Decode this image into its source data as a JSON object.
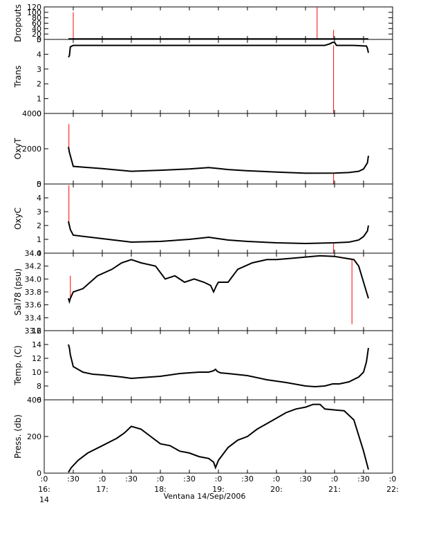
{
  "figure": {
    "x_ticks": [
      {
        "t": 0,
        "label": ":0",
        "sub": "16:"
      },
      {
        "t": 30,
        "label": ":30",
        "sub": ""
      },
      {
        "t": 60,
        "label": ":0",
        "sub": "17:"
      },
      {
        "t": 90,
        "label": ":30",
        "sub": ""
      },
      {
        "t": 120,
        "label": ":0",
        "sub": "18:"
      },
      {
        "t": 150,
        "label": ":30",
        "sub": ""
      },
      {
        "t": 180,
        "label": ":0",
        "sub": "19:"
      },
      {
        "t": 210,
        "label": ":30",
        "sub": ""
      },
      {
        "t": 240,
        "label": ":0",
        "sub": "20:"
      },
      {
        "t": 270,
        "label": ":30",
        "sub": ""
      },
      {
        "t": 300,
        "label": ":0",
        "sub": "21:"
      },
      {
        "t": 330,
        "label": ":30",
        "sub": ""
      },
      {
        "t": 360,
        "label": ":0",
        "sub": "22:"
      }
    ],
    "x_day_label": "14",
    "xlabel": "Ventana 14/Sep/2006"
  },
  "chart_data": [
    {
      "type": "line",
      "ylabel": "Dropouts",
      "xlim": [
        0,
        360
      ],
      "ylim": [
        0,
        120
      ],
      "yticks": [
        0,
        20,
        40,
        60,
        80,
        100,
        120
      ],
      "ytick_labels": [
        "0",
        "20",
        "40",
        "60",
        "80",
        "100",
        "120"
      ],
      "series": [
        {
          "color": "#000000",
          "x": [
            25,
            168,
            270,
            280,
            290,
            300,
            310,
            320,
            335
          ],
          "y": [
            2,
            2,
            2,
            2,
            2,
            2,
            2,
            2,
            2
          ]
        }
      ],
      "spikes": [
        {
          "x": 30,
          "from": 2,
          "to": 100
        },
        {
          "x": 282,
          "from": 2,
          "to": 135
        },
        {
          "x": 299,
          "from": 2,
          "to": 35
        }
      ]
    },
    {
      "type": "line",
      "ylabel": "Trans",
      "xlim": [
        0,
        360
      ],
      "ylim": [
        0,
        5
      ],
      "yticks": [
        0,
        1,
        2,
        3,
        4,
        5
      ],
      "ytick_labels": [
        "0",
        "1",
        "2",
        "3",
        "4",
        "5"
      ],
      "series": [
        {
          "color": "#000000",
          "x": [
            25,
            26,
            27,
            30,
            60,
            90,
            120,
            150,
            180,
            210,
            240,
            270,
            290,
            295,
            298,
            300,
            302,
            305,
            320,
            333,
            334,
            335
          ],
          "y": [
            3.8,
            3.9,
            4.5,
            4.6,
            4.6,
            4.6,
            4.6,
            4.6,
            4.6,
            4.6,
            4.6,
            4.6,
            4.6,
            4.7,
            4.8,
            4.8,
            4.6,
            4.6,
            4.6,
            4.55,
            4.4,
            4.1
          ]
        }
      ],
      "spikes": [
        {
          "x": 299,
          "from": 4.6,
          "to": 0
        }
      ]
    },
    {
      "type": "line",
      "ylabel": "OxyT",
      "xlim": [
        0,
        360
      ],
      "ylim": [
        0,
        4000
      ],
      "yticks": [
        0,
        2000,
        4000
      ],
      "ytick_labels": [
        "0",
        "2000",
        "4000"
      ],
      "series": [
        {
          "color": "#000000",
          "x": [
            25,
            26,
            27,
            30,
            60,
            90,
            120,
            150,
            170,
            180,
            190,
            210,
            240,
            270,
            300,
            315,
            325,
            330,
            334,
            335
          ],
          "y": [
            2100,
            1800,
            1600,
            1000,
            870,
            720,
            780,
            850,
            930,
            880,
            820,
            750,
            680,
            610,
            620,
            650,
            720,
            850,
            1200,
            1600
          ]
        }
      ],
      "spikes": [
        {
          "x": 25.5,
          "from": 1800,
          "to": 3400
        },
        {
          "x": 299,
          "from": 620,
          "to": -200
        }
      ]
    },
    {
      "type": "line",
      "ylabel": "OxyC",
      "xlim": [
        0,
        360
      ],
      "ylim": [
        0,
        5
      ],
      "yticks": [
        0,
        1,
        2,
        3,
        4,
        5
      ],
      "ytick_labels": [
        "0",
        "1",
        "2",
        "3",
        "4",
        "5"
      ],
      "series": [
        {
          "color": "#000000",
          "x": [
            25,
            26,
            27,
            30,
            60,
            90,
            120,
            150,
            170,
            180,
            190,
            210,
            240,
            270,
            300,
            315,
            325,
            330,
            334,
            335
          ],
          "y": [
            2.3,
            2.0,
            1.7,
            1.3,
            1.05,
            0.8,
            0.85,
            1.0,
            1.15,
            1.05,
            0.95,
            0.85,
            0.75,
            0.7,
            0.75,
            0.8,
            0.95,
            1.2,
            1.6,
            2.0
          ]
        }
      ],
      "spikes": [
        {
          "x": 25.5,
          "from": 2.0,
          "to": 4.9
        },
        {
          "x": 299,
          "from": 0.75,
          "to": -0.2
        }
      ]
    },
    {
      "type": "line",
      "ylabel": "Sal78 (psu)",
      "xlim": [
        0,
        360
      ],
      "ylim": [
        33.2,
        34.4
      ],
      "yticks": [
        33.2,
        33.4,
        33.6,
        33.8,
        34.0,
        34.2,
        34.4
      ],
      "ytick_labels": [
        "33.2",
        "33.4",
        "33.6",
        "33.8",
        "34.0",
        "34.2",
        "34.4"
      ],
      "series": [
        {
          "color": "#000000",
          "x": [
            25,
            26,
            27,
            30,
            40,
            55,
            70,
            80,
            90,
            100,
            115,
            125,
            135,
            145,
            155,
            165,
            172,
            175,
            178,
            180,
            190,
            200,
            215,
            230,
            240,
            255,
            270,
            285,
            300,
            312,
            320,
            325,
            330,
            333,
            335
          ],
          "y": [
            33.7,
            33.65,
            33.7,
            33.8,
            33.85,
            34.05,
            34.15,
            34.25,
            34.3,
            34.25,
            34.2,
            34.0,
            34.05,
            33.95,
            34.0,
            33.95,
            33.9,
            33.8,
            33.9,
            33.95,
            33.95,
            34.15,
            34.25,
            34.3,
            34.3,
            34.32,
            34.34,
            34.36,
            34.35,
            34.32,
            34.3,
            34.2,
            33.95,
            33.8,
            33.7
          ]
        }
      ],
      "spikes": [
        {
          "x": 27,
          "from": 33.7,
          "to": 34.05
        },
        {
          "x": 318,
          "from": 34.3,
          "to": 33.3
        }
      ]
    },
    {
      "type": "line",
      "ylabel": "Temp. (C)",
      "xlim": [
        0,
        360
      ],
      "ylim": [
        6,
        16
      ],
      "yticks": [
        6,
        8,
        10,
        12,
        14,
        16
      ],
      "ytick_labels": [
        "6",
        "8",
        "10",
        "12",
        "14",
        "16"
      ],
      "series": [
        {
          "color": "#000000",
          "x": [
            25,
            26,
            27,
            30,
            40,
            50,
            60,
            80,
            90,
            100,
            120,
            140,
            160,
            170,
            175,
            177,
            179,
            182,
            190,
            210,
            230,
            250,
            270,
            280,
            290,
            298,
            305,
            315,
            325,
            330,
            333,
            335
          ],
          "y": [
            14.0,
            13.5,
            12.5,
            10.8,
            10.0,
            9.7,
            9.6,
            9.3,
            9.1,
            9.2,
            9.4,
            9.8,
            10.0,
            10.0,
            10.2,
            10.4,
            10.1,
            9.9,
            9.8,
            9.5,
            8.9,
            8.5,
            8.0,
            7.9,
            8.0,
            8.3,
            8.3,
            8.6,
            9.3,
            10.0,
            11.5,
            13.5
          ]
        }
      ],
      "spikes": []
    },
    {
      "type": "line",
      "ylabel": "Press. (db)",
      "xlim": [
        0,
        360
      ],
      "ylim": [
        0,
        400
      ],
      "yticks": [
        0,
        200,
        400
      ],
      "ytick_labels": [
        "0",
        "200",
        "400"
      ],
      "series": [
        {
          "color": "#000000",
          "x": [
            25,
            28,
            35,
            45,
            60,
            75,
            83,
            90,
            100,
            110,
            120,
            130,
            140,
            150,
            160,
            170,
            175,
            177,
            180,
            190,
            200,
            210,
            220,
            230,
            240,
            250,
            260,
            270,
            278,
            285,
            290,
            300,
            310,
            320,
            330,
            335
          ],
          "y": [
            5,
            30,
            70,
            110,
            150,
            190,
            220,
            255,
            240,
            200,
            160,
            150,
            120,
            110,
            90,
            80,
            60,
            30,
            70,
            140,
            180,
            200,
            240,
            270,
            300,
            330,
            350,
            360,
            375,
            375,
            350,
            345,
            340,
            290,
            120,
            20
          ]
        }
      ],
      "spikes": []
    }
  ]
}
